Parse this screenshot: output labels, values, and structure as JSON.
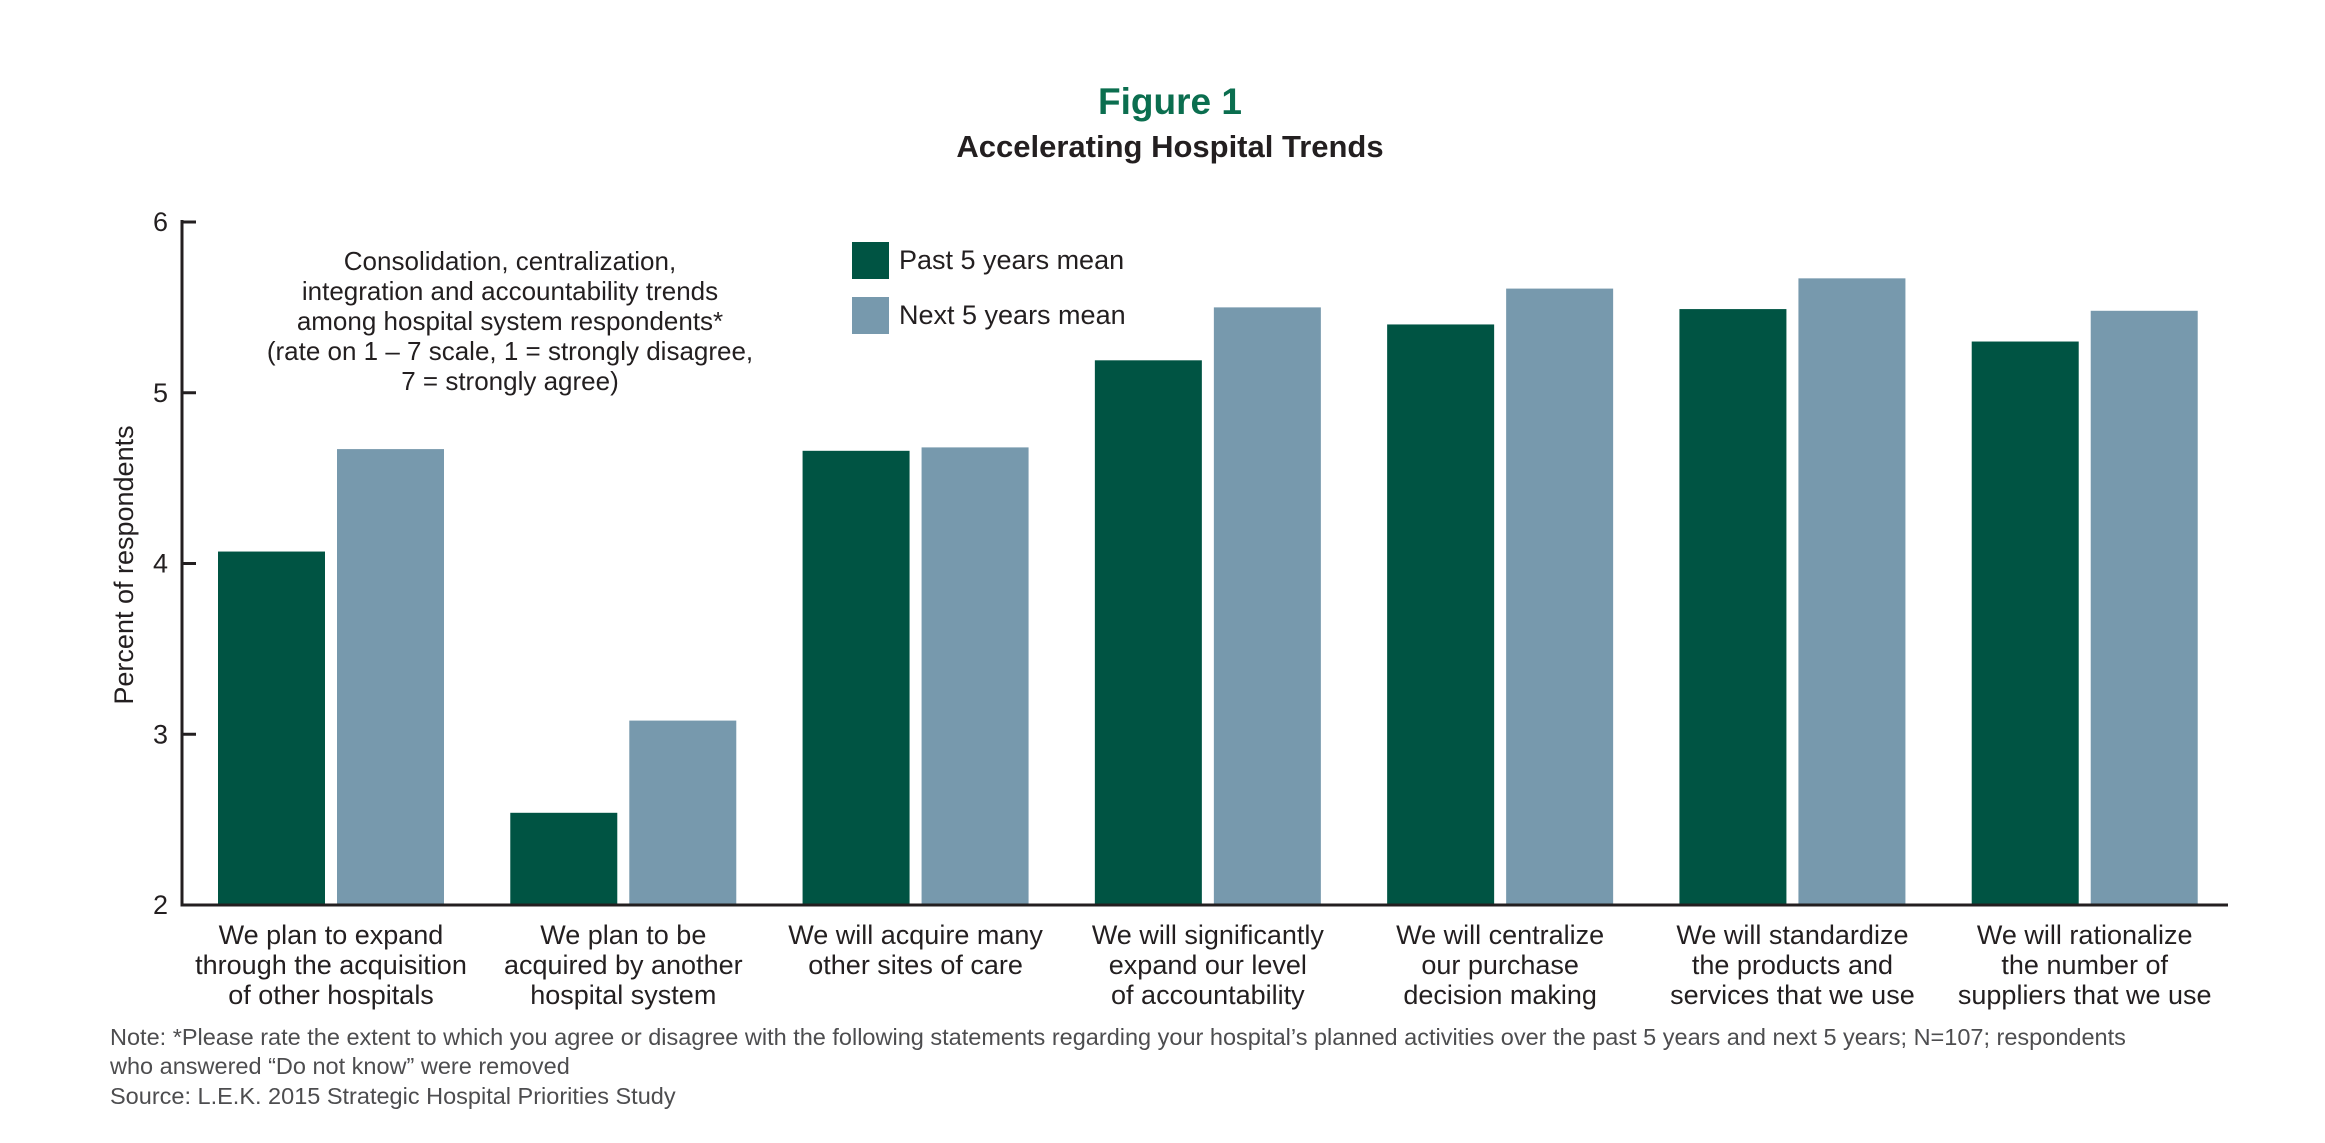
{
  "chart_data": {
    "type": "bar",
    "title": "Figure 1",
    "subtitle": "Accelerating Hospital Trends",
    "ylabel": "Percent of respondents",
    "xlabel": "",
    "ylim": [
      2,
      6
    ],
    "yticks": [
      2,
      3,
      4,
      5,
      6
    ],
    "grid": false,
    "legend_position": "top-center",
    "categories": [
      [
        "We plan to expand",
        "through the acquisition",
        "of other hospitals"
      ],
      [
        "We plan to be",
        "acquired by another",
        "hospital system"
      ],
      [
        "We will acquire many",
        "other sites of care"
      ],
      [
        "We will significantly",
        "expand our level",
        "of accountability"
      ],
      [
        "We will centralize",
        "our purchase",
        "decision making"
      ],
      [
        "We will standardize",
        "the products and",
        "services that we use"
      ],
      [
        "We will rationalize",
        "the number of",
        "suppliers that we use"
      ]
    ],
    "series": [
      {
        "name": "Past 5 years mean",
        "color": "#005443",
        "values": [
          4.07,
          2.54,
          4.66,
          5.19,
          5.4,
          5.49,
          5.3
        ]
      },
      {
        "name": "Next 5 years mean",
        "color": "#7799ad",
        "values": [
          4.67,
          3.08,
          4.68,
          5.5,
          5.61,
          5.67,
          5.48
        ]
      }
    ],
    "annotation": [
      "Consolidation, centralization,",
      "integration and accountability trends",
      "among hospital system respondents*",
      "(rate on 1 – 7 scale, 1 = strongly disagree,",
      "7 = strongly agree)"
    ]
  },
  "notes": {
    "note_line1": "Note: *Please rate the extent to which you agree or disagree with the following statements regarding your hospital’s planned activities over the past 5 years and next 5 years; N=107; respondents",
    "note_line2": "who answered “Do not know” were removed",
    "source": "Source: L.E.K. 2015 Strategic Hospital Priorities Study"
  },
  "colors": {
    "title": "#0b6e4f",
    "text": "#231f20",
    "axis": "#231f20"
  }
}
